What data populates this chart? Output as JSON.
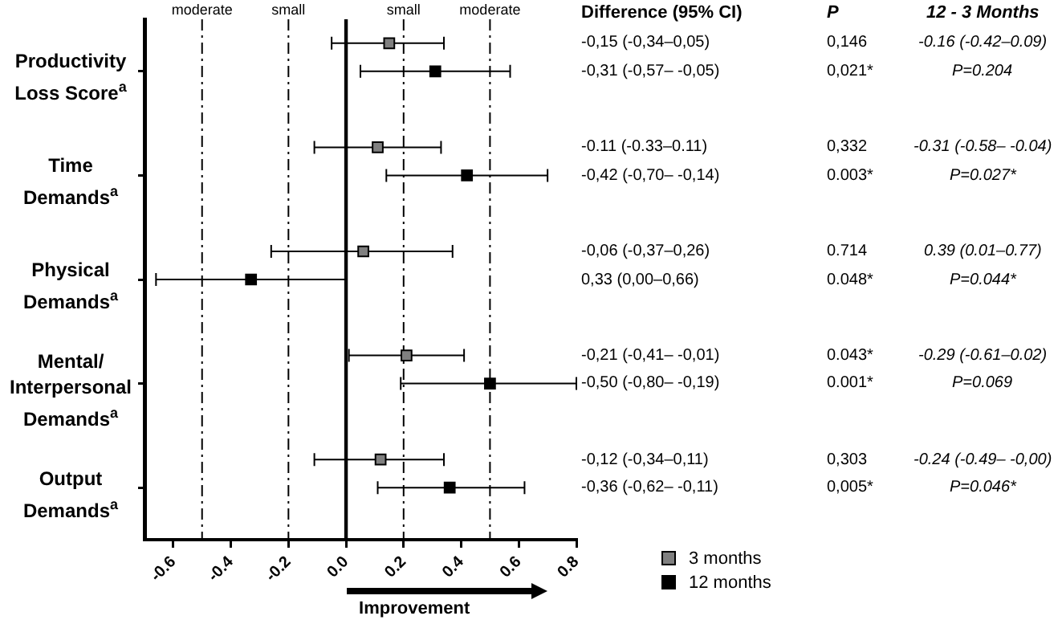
{
  "chart_data": {
    "type": "scatter",
    "orientation": "horizontal",
    "categories": [
      "Productivity Loss Score$^{a}$",
      "Time Demands$^{a}$",
      "Physical Demands$^{a}$",
      "Mental/ Interpersonal Demands$^{a}$",
      "Output Demands$^{a}$"
    ],
    "series": [
      {
        "name": "3 months",
        "color": "#808080",
        "values": [
          0.15,
          0.11,
          0.06,
          0.21,
          0.12
        ],
        "errors": [
          [
            -0.05,
            0.34
          ],
          [
            -0.11,
            0.33
          ],
          [
            -0.26,
            0.37
          ],
          [
            0.01,
            0.41
          ],
          [
            -0.11,
            0.34
          ]
        ]
      },
      {
        "name": "12 months",
        "color": "#000000",
        "values": [
          0.31,
          0.42,
          -0.33,
          0.5,
          0.36
        ],
        "errors": [
          [
            0.05,
            0.57
          ],
          [
            0.14,
            0.7
          ],
          [
            -0.66,
            0.0
          ],
          [
            0.19,
            0.8
          ],
          [
            0.11,
            0.62
          ]
        ]
      }
    ],
    "xlim": [
      -0.7,
      0.8
    ],
    "xticks": [
      -0.6,
      -0.4,
      -0.2,
      {
        "value": 0,
        "label": "0.0"
      },
      0.2,
      0.4,
      0.6,
      0.8
    ],
    "marker": "square",
    "legend": "bottom right",
    "ref_lines": [
      {
        "axis": "x",
        "value": -0.5,
        "label": "moderate",
        "line_style": "dashed"
      },
      {
        "axis": "x",
        "value": -0.2,
        "label": "small",
        "line_style": "dashed"
      },
      {
        "axis": "x",
        "value": 0,
        "line_style": "solid"
      },
      {
        "axis": "x",
        "value": 0.2,
        "label": "small",
        "line_style": "dashed"
      },
      {
        "axis": "x",
        "value": 0.5,
        "label": "moderate",
        "line_style": "dashed"
      }
    ],
    "annotations": [
      "Difference (95% CI)",
      "P",
      "12 - 3 Months",
      "Improvement",
      "-0,15 (-0,34–0,05)",
      "0,146",
      "-0.16 (-0.42–0.09)",
      "-0,31 (-0,57– -0,05)",
      "0,021*",
      "P=0.204",
      "-0.11 (-0.33–0.11)",
      "0,332",
      "-0.31 (-0.58– -0.04)",
      "-0,42 (-0,70– -0,14)",
      "0.003*",
      "P=0.027*",
      "-0,06 (-0,37–0,26)",
      "0.714",
      "0.39 (0.01–0.77)",
      "0,33 (0,00–0,66)",
      "0.048*",
      "P=0.044*",
      "-0,21 (-0,41– -0,01)",
      "0.043*",
      "-0.29 (-0.61–0.02)",
      "-0,50 (-0,80– -0,19)",
      "0.001*",
      "P=0.069",
      "-0,12 (-0,34–0,11)",
      "0,303",
      "-0.24 (-0.49– -0,00)",
      "-0,36 (-0,62– -0,11)",
      "0,005*",
      "P=0.046*"
    ]
  }
}
